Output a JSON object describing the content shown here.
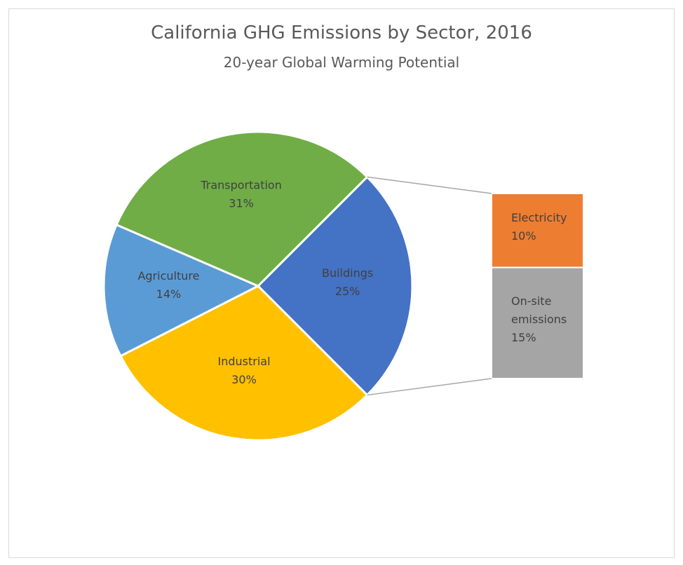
{
  "chart_data": {
    "type": "pie-of-bar",
    "title": "California GHG Emissions by Sector, 2016",
    "subtitle": "20-year Global Warming Potential",
    "categories": [
      "Buildings",
      "Industrial",
      "Agriculture",
      "Transportation"
    ],
    "values": [
      25,
      30,
      14,
      31
    ],
    "value_labels": [
      "25%",
      "30%",
      "14%",
      "31%"
    ],
    "colors": [
      "#4472c4",
      "#ffc000",
      "#5b9bd5",
      "#70ad47"
    ],
    "breakdown": {
      "categories": [
        "Electricity",
        "On-site emissions"
      ],
      "values": [
        10,
        15
      ],
      "value_labels": [
        "10%",
        "15%"
      ],
      "colors": [
        "#ed7d31",
        "#a5a5a5"
      ]
    }
  }
}
